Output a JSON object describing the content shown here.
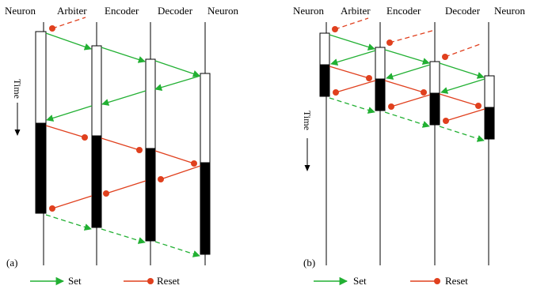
{
  "colors": {
    "set": "#22b033",
    "reset": "#e0401e",
    "bar_fill": "#000000",
    "axis": "#000000"
  },
  "panels": [
    {
      "label": "(a)",
      "headers": [
        "Neuron",
        "Arbiter",
        "Encoder",
        "Decoder",
        "Neuron"
      ],
      "time_label": "Time"
    },
    {
      "label": "(b)",
      "headers": [
        "Neuron",
        "Arbiter",
        "Encoder",
        "Decoder",
        "Neuron"
      ],
      "time_label": "Time"
    }
  ],
  "legend": {
    "set_label": "Set",
    "reset_label": "Reset"
  }
}
